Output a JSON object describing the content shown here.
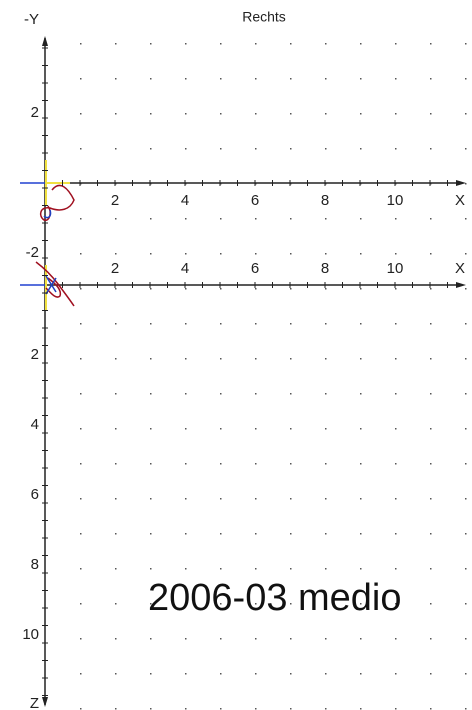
{
  "title": "Rechts",
  "top_view": {
    "y_label": "-Y",
    "y_ticks": [
      2,
      -2
    ],
    "x_label": "X",
    "x_ticks": [
      2,
      4,
      6,
      8,
      10
    ]
  },
  "side_view": {
    "x_label": "X",
    "x_ticks": [
      2,
      4,
      6,
      8,
      10
    ],
    "z_label": "Z",
    "z_ticks": [
      2,
      4,
      6,
      8,
      10
    ]
  },
  "annotation": "2006-03 medio"
}
